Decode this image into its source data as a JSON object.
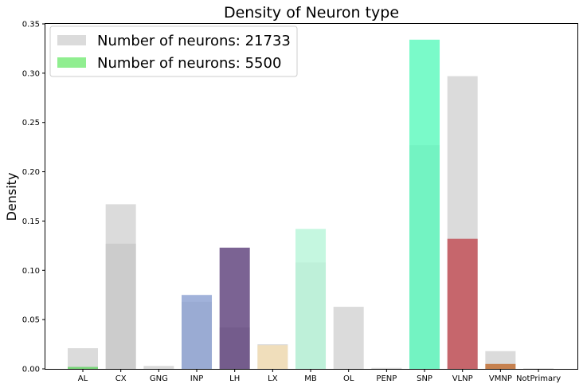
{
  "chart_data": {
    "type": "bar",
    "title": "Density of Neuron type",
    "xlabel": "",
    "ylabel": "Density",
    "ylim": [
      0,
      0.35
    ],
    "yticks": [
      "0.00",
      "0.05",
      "0.10",
      "0.15",
      "0.20",
      "0.25",
      "0.30",
      "0.35"
    ],
    "categories": [
      "AL",
      "CX",
      "GNG",
      "INP",
      "LH",
      "LX",
      "MB",
      "OL",
      "PENP",
      "SNP",
      "VLNP",
      "VMNP",
      "NotPrimary"
    ],
    "legend_position": "top-left",
    "grid": false,
    "series": [
      {
        "name": "Number of neurons: 21733",
        "color": "#d3d3d3",
        "values": [
          0.021,
          0.167,
          0.003,
          0.068,
          0.042,
          0.025,
          0.108,
          0.063,
          0.001,
          0.227,
          0.297,
          0.018,
          0.0005
        ]
      },
      {
        "name": "Number of neurons: 5500",
        "color": "#90ee90",
        "values": [
          0.002,
          0.127,
          0.0,
          0.075,
          0.123,
          0.024,
          0.142,
          0.0,
          0.0,
          0.334,
          0.132,
          0.005,
          0.0
        ],
        "bar_colors": [
          "#5fd35f",
          "#c8c8c8",
          "#c8c8c8",
          "#8a9fd1",
          "#5a3c78",
          "#f5deb3",
          "#b6f5d8",
          "#c8c8c8",
          "#c8c8c8",
          "#59f9bb",
          "#c04850",
          "#c06a2c",
          "#c8c8c8"
        ]
      }
    ]
  }
}
